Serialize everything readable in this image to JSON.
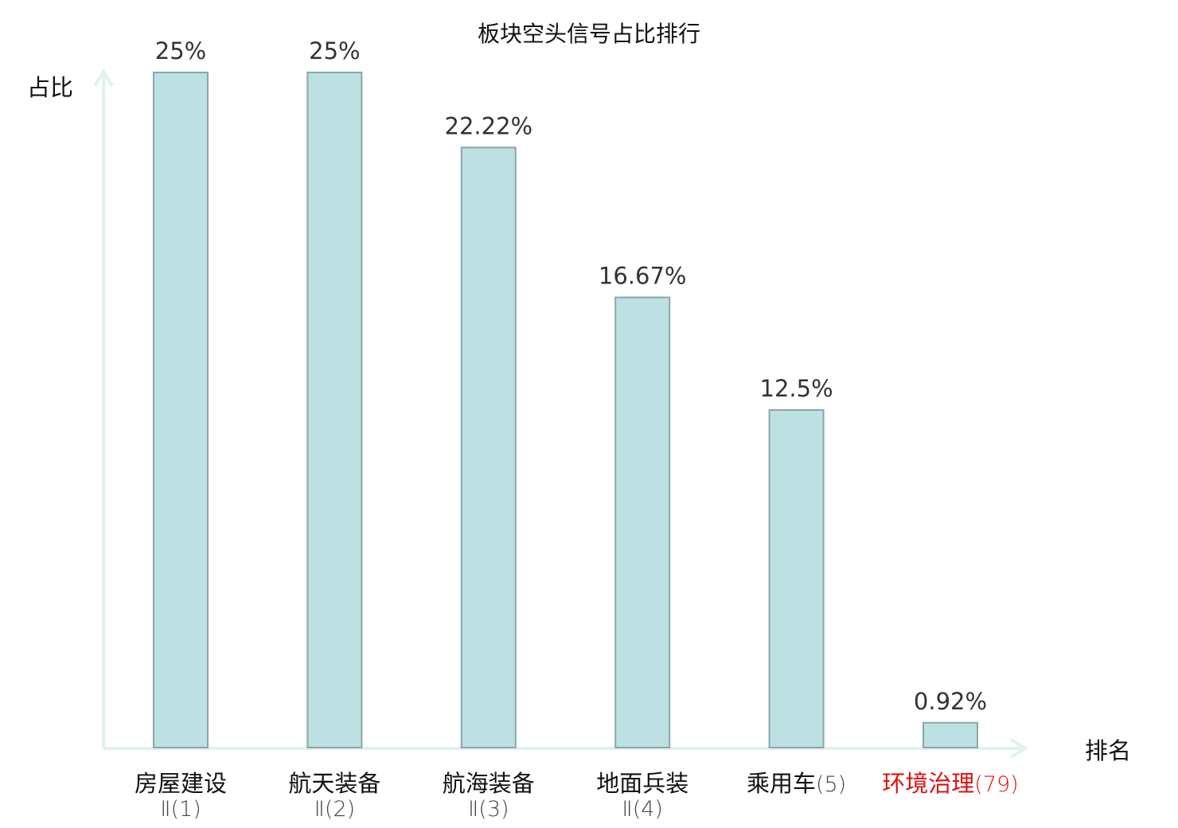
{
  "chart_data": {
    "type": "bar",
    "title": "板块空头信号占比排行",
    "ylabel": "占比",
    "xlabel": "排名",
    "categories": [
      {
        "name": "房屋建设",
        "rank": "Ⅱ(1)",
        "highlight": false
      },
      {
        "name": "航天装备",
        "rank": "Ⅱ(2)",
        "highlight": false
      },
      {
        "name": "航海装备",
        "rank": "Ⅱ(3)",
        "highlight": false
      },
      {
        "name": "地面兵装",
        "rank": "Ⅱ(4)",
        "highlight": false
      },
      {
        "name": "乘用车",
        "rank": "(5)",
        "highlight": false
      },
      {
        "name": "环境治理",
        "rank": "(79)",
        "highlight": true
      }
    ],
    "values": [
      25,
      25,
      22.22,
      16.67,
      12.5,
      0.92
    ],
    "value_labels": [
      "25%",
      "25%",
      "22.22%",
      "16.67%",
      "12.5%",
      "0.92%"
    ],
    "ylim": [
      0,
      25
    ],
    "grid": false,
    "colors": {
      "bar_fill": "#bde0e3",
      "bar_stroke": "#8aa7a9",
      "axis": "#e0f2ef",
      "highlight": "#dd1111",
      "text": "#111111"
    }
  }
}
